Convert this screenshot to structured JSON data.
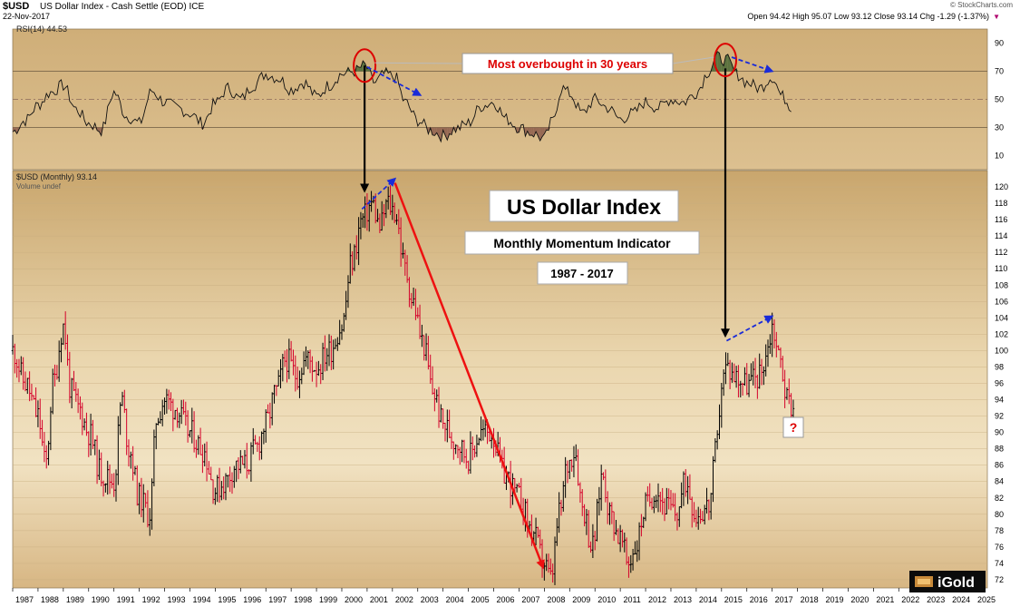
{
  "header": {
    "symbol": "$USD",
    "name": "US Dollar Index - Cash Settle (EOD)  ICE",
    "date": "22-Nov-2017",
    "ohlc": "Open 94.42  High 95.07  Low 93.12  Close 93.14  Chg -1.29 (-1.37%)",
    "ohlc_parts": [
      {
        "k": "Open",
        "v": "94.42"
      },
      {
        "k": "High",
        "v": "95.07"
      },
      {
        "k": "Low",
        "v": "93.12"
      },
      {
        "k": "Close",
        "v": "93.14"
      },
      {
        "k": "Chg",
        "v": "-1.29 (-1.37%)"
      }
    ],
    "credit": "© StockCharts.com"
  },
  "rsi_panel": {
    "label": "RSI(14) 44.53",
    "callout": "Most overbought in 30 years"
  },
  "price_panel": {
    "label": "$USD (Monthly) 93.14",
    "volume_label": "Volume undef"
  },
  "annotations": {
    "title": "US Dollar Index",
    "subtitle": "Monthly Momentum Indicator",
    "range": "1987 - 2017",
    "question": "?"
  },
  "brand": {
    "text": "iGold"
  },
  "colors": {
    "bull": "#000000",
    "bear": "#d4002a",
    "arrow_red": "#ee1111",
    "arrow_blue": "#1a2bd8",
    "callout_red": "#dd0000"
  },
  "chart_data": [
    {
      "type": "line",
      "title": "RSI(14)",
      "ylim": [
        0,
        100
      ],
      "yticks": [
        10,
        30,
        50,
        70,
        90
      ],
      "reference_lines": [
        30,
        50,
        70
      ],
      "x": [
        1987,
        1987.5,
        1988,
        1988.5,
        1989,
        1989.5,
        1990,
        1990.5,
        1991,
        1991.5,
        1992,
        1992.5,
        1993,
        1993.5,
        1994,
        1994.5,
        1995,
        1995.5,
        1996,
        1996.5,
        1997,
        1997.5,
        1998,
        1998.5,
        1999,
        1999.5,
        2000,
        2000.5,
        2000.9,
        2001.3,
        2001.7,
        2002.1,
        2002.5,
        2003,
        2003.5,
        2004,
        2004.5,
        2005,
        2005.5,
        2006,
        2006.5,
        2007,
        2007.5,
        2008,
        2008.3,
        2008.7,
        2009,
        2009.5,
        2010,
        2010.5,
        2011,
        2011.5,
        2012,
        2012.5,
        2013,
        2013.5,
        2014,
        2014.5,
        2014.8,
        2015.2,
        2015.6,
        2016,
        2016.5,
        2017,
        2017.4,
        2017.8
      ],
      "values": [
        27,
        35,
        46,
        55,
        60,
        43,
        33,
        28,
        55,
        38,
        33,
        56,
        48,
        44,
        40,
        33,
        47,
        58,
        50,
        60,
        68,
        65,
        57,
        62,
        52,
        60,
        68,
        70,
        74,
        62,
        68,
        66,
        48,
        35,
        28,
        24,
        29,
        33,
        45,
        48,
        36,
        30,
        26,
        22,
        34,
        58,
        54,
        40,
        50,
        44,
        36,
        40,
        48,
        44,
        50,
        48,
        55,
        70,
        80,
        78,
        68,
        62,
        58,
        66,
        52,
        44
      ]
    },
    {
      "type": "bar",
      "title": "$USD (Monthly)",
      "ylim": [
        71,
        122
      ],
      "yticks": [
        72,
        74,
        76,
        78,
        80,
        82,
        84,
        86,
        88,
        90,
        92,
        94,
        96,
        98,
        100,
        102,
        104,
        106,
        108,
        110,
        112,
        114,
        116,
        118,
        120
      ],
      "xlim": [
        1987,
        2025.5
      ],
      "xticks": [
        1987,
        1988,
        1989,
        1990,
        1991,
        1992,
        1993,
        1994,
        1995,
        1996,
        1997,
        1998,
        1999,
        2000,
        2001,
        2002,
        2003,
        2004,
        2005,
        2006,
        2007,
        2008,
        2009,
        2010,
        2011,
        2012,
        2013,
        2014,
        2015,
        2016,
        2017,
        2018,
        2019,
        2020,
        2021,
        2022,
        2023,
        2024,
        2025
      ],
      "x": [
        1987,
        1987.5,
        1988,
        1988.3,
        1988.6,
        1989,
        1989.3,
        1989.6,
        1990,
        1990.5,
        1991,
        1991.3,
        1991.6,
        1992,
        1992.4,
        1992.7,
        1993,
        1993.4,
        1994,
        1994.5,
        1995,
        1995.4,
        1995.8,
        1996.2,
        1996.6,
        1997,
        1997.4,
        1997.8,
        1998.2,
        1998.6,
        1999,
        1999.5,
        2000,
        2000.4,
        2000.8,
        2001.2,
        2001.5,
        2001.8,
        2002.1,
        2002.5,
        2002.8,
        2003.2,
        2003.6,
        2004,
        2004.5,
        2005,
        2005.5,
        2005.9,
        2006.4,
        2007,
        2007.5,
        2008,
        2008.25,
        2008.6,
        2008.9,
        2009.2,
        2009.5,
        2009.9,
        2010.3,
        2010.6,
        2011,
        2011.3,
        2011.6,
        2012,
        2012.4,
        2012.8,
        2013.2,
        2013.6,
        2014,
        2014.5,
        2014.8,
        2015,
        2015.2,
        2015.5,
        2016,
        2016.5,
        2016.8,
        2017,
        2017.3,
        2017.6,
        2017.85
      ],
      "values": [
        100,
        96,
        92,
        86,
        96,
        103,
        95,
        93,
        90,
        85,
        84,
        94,
        88,
        82,
        80,
        92,
        94,
        93,
        90,
        88,
        83,
        84,
        86,
        86,
        88,
        91,
        95,
        99,
        97,
        99,
        98,
        100,
        103,
        111,
        116,
        118,
        115,
        118,
        117,
        110,
        106,
        101,
        95,
        91,
        89,
        87,
        90,
        90,
        85,
        82,
        78,
        74,
        72,
        80,
        86,
        88,
        81,
        76,
        85,
        80,
        77,
        74,
        76,
        81,
        83,
        81,
        80,
        84,
        80,
        81,
        88,
        96,
        98,
        97,
        96,
        97,
        100,
        103,
        99,
        94,
        93.14
      ],
      "extremes": {
        "high_2002": 120.9,
        "low_2008": 71.3,
        "high_2017": 103.8,
        "close": 93.14
      }
    }
  ]
}
